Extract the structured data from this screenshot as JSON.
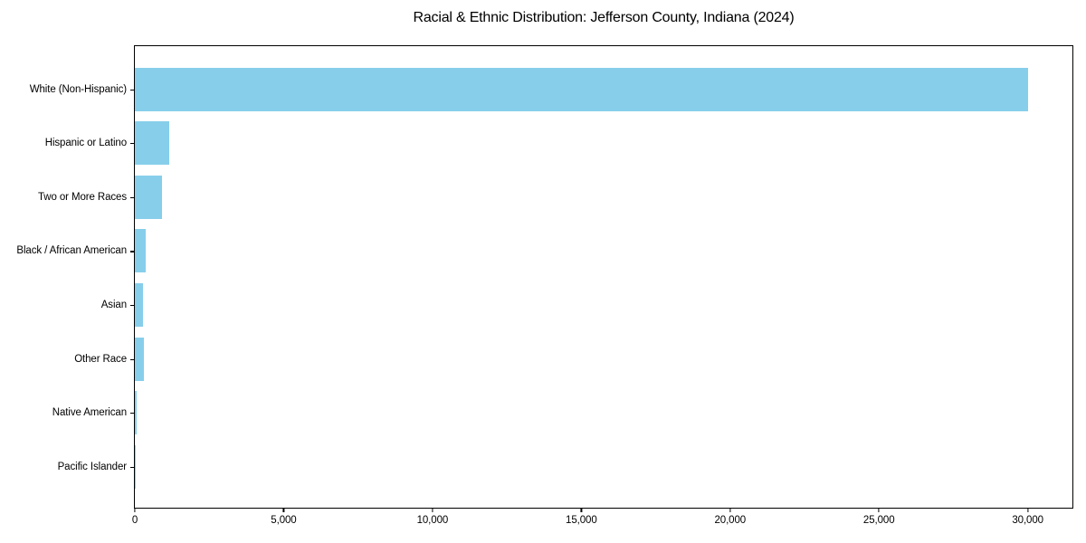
{
  "chart_data": {
    "type": "bar",
    "orientation": "horizontal",
    "title": "Racial & Ethnic Distribution: Jefferson County, Indiana (2024)",
    "categories": [
      "White (Non-Hispanic)",
      "Hispanic or Latino",
      "Two or More Races",
      "Black / African American",
      "Asian",
      "Other Race",
      "Native American",
      "Pacific Islander"
    ],
    "values": [
      30000,
      1150,
      900,
      380,
      270,
      300,
      50,
      10
    ],
    "xlabel": "",
    "ylabel": "",
    "xlim": [
      0,
      31500
    ],
    "xticks": [
      0,
      5000,
      10000,
      15000,
      20000,
      25000,
      30000
    ],
    "xtick_labels": [
      "0",
      "5,000",
      "10,000",
      "15,000",
      "20,000",
      "25,000",
      "30,000"
    ],
    "bar_color": "#87CEEB",
    "grid": false,
    "legend_position": "none",
    "background_color": "#ffffff",
    "spine_color": "#000000"
  }
}
